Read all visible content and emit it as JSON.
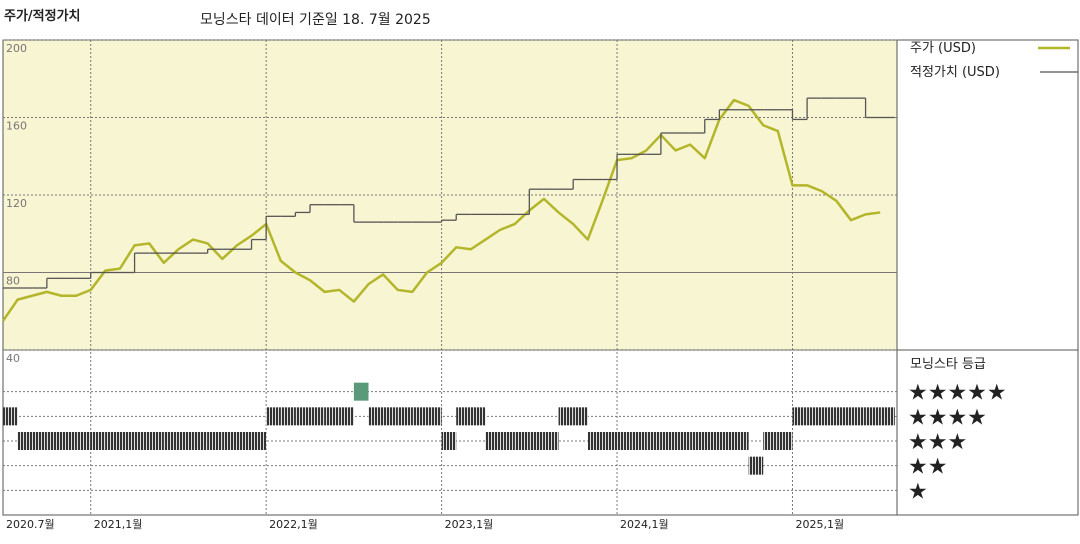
{
  "header": {
    "title": "주가/적정가치",
    "subtitle": "모닝스타 데이터 기준일 18. 7월 2025"
  },
  "chart_data": [
    {
      "type": "line",
      "x": [
        "2020-07",
        "2020-08",
        "2020-09",
        "2020-10",
        "2020-11",
        "2020-12",
        "2021-01",
        "2021-02",
        "2021-03",
        "2021-04",
        "2021-05",
        "2021-06",
        "2021-07",
        "2021-08",
        "2021-09",
        "2021-10",
        "2021-11",
        "2021-12",
        "2022-01",
        "2022-02",
        "2022-03",
        "2022-04",
        "2022-05",
        "2022-06",
        "2022-07",
        "2022-08",
        "2022-09",
        "2022-10",
        "2022-11",
        "2022-12",
        "2023-01",
        "2023-02",
        "2023-03",
        "2023-04",
        "2023-05",
        "2023-06",
        "2023-07",
        "2023-08",
        "2023-09",
        "2023-10",
        "2023-11",
        "2023-12",
        "2024-01",
        "2024-02",
        "2024-03",
        "2024-04",
        "2024-05",
        "2024-06",
        "2024-07",
        "2024-08",
        "2024-09",
        "2024-10",
        "2024-11",
        "2024-12",
        "2025-01",
        "2025-02",
        "2025-03",
        "2025-04",
        "2025-05",
        "2025-06",
        "2025-07"
      ],
      "series": [
        {
          "name": "주가 (USD)",
          "color": "#b3b52a",
          "style": "line",
          "values": [
            55,
            66,
            68,
            70,
            68,
            68,
            71,
            81,
            82,
            94,
            95,
            85,
            92,
            97,
            95,
            87,
            94,
            99,
            105,
            86,
            80,
            76,
            70,
            71,
            65,
            74,
            79,
            71,
            70,
            80,
            85,
            93,
            92,
            97,
            102,
            105,
            112,
            118,
            111,
            105,
            97,
            117,
            138,
            139,
            143,
            151,
            143,
            146,
            139,
            159,
            169,
            166,
            156,
            153,
            125,
            125,
            122,
            117,
            107,
            110,
            111
          ]
        },
        {
          "name": "적정가치 (USD)",
          "color": "#555555",
          "style": "step",
          "values": [
            72,
            72,
            72,
            77,
            77,
            77,
            80,
            80,
            80,
            90,
            90,
            90,
            90,
            90,
            92,
            92,
            92,
            97,
            109,
            109,
            111,
            115,
            115,
            115,
            106,
            106,
            106,
            106,
            106,
            106,
            107,
            110,
            110,
            110,
            110,
            110,
            123,
            123,
            123,
            128,
            128,
            128,
            141,
            141,
            141,
            152,
            152,
            152,
            159,
            164,
            164,
            164,
            164,
            164,
            159,
            170,
            170,
            170,
            170,
            160,
            160
          ]
        }
      ],
      "ylim": [
        40,
        200
      ],
      "yticks": [
        40,
        80,
        120,
        160,
        200
      ],
      "xticks": [
        {
          "value": "2020-07",
          "label": "2020.7월"
        },
        {
          "value": "2021-01",
          "label": "2021,1월"
        },
        {
          "value": "2022-01",
          "label": "2022,1월"
        },
        {
          "value": "2023-01",
          "label": "2023,1월"
        },
        {
          "value": "2024-01",
          "label": "2024,1월"
        },
        {
          "value": "2025-01",
          "label": "2025,1월"
        }
      ],
      "grid": true,
      "background": "#f8f5d2"
    },
    {
      "type": "strip",
      "title": "모닝스타 등급",
      "color": "#333333",
      "top_color": "#5a9a7a",
      "x": [
        "2020-07",
        "2020-08",
        "2020-09",
        "2020-10",
        "2020-11",
        "2020-12",
        "2021-01",
        "2021-02",
        "2021-03",
        "2021-04",
        "2021-05",
        "2021-06",
        "2021-07",
        "2021-08",
        "2021-09",
        "2021-10",
        "2021-11",
        "2021-12",
        "2022-01",
        "2022-02",
        "2022-03",
        "2022-04",
        "2022-05",
        "2022-06",
        "2022-07",
        "2022-08",
        "2022-09",
        "2022-10",
        "2022-11",
        "2022-12",
        "2023-01",
        "2023-02",
        "2023-03",
        "2023-04",
        "2023-05",
        "2023-06",
        "2023-07",
        "2023-08",
        "2023-09",
        "2023-10",
        "2023-11",
        "2023-12",
        "2024-01",
        "2024-02",
        "2024-03",
        "2024-04",
        "2024-05",
        "2024-06",
        "2024-07",
        "2024-08",
        "2024-09",
        "2024-10",
        "2024-11",
        "2024-12",
        "2025-01",
        "2025-02",
        "2025-03",
        "2025-04",
        "2025-05",
        "2025-06",
        "2025-07"
      ],
      "values": [
        4,
        3,
        3,
        3,
        3,
        3,
        3,
        3,
        3,
        3,
        3,
        3,
        3,
        3,
        3,
        3,
        3,
        3,
        4,
        4,
        4,
        4,
        4,
        4,
        5,
        4,
        4,
        4,
        4,
        4,
        3,
        4,
        4,
        3,
        3,
        3,
        3,
        3,
        4,
        4,
        3,
        3,
        3,
        3,
        3,
        3,
        3,
        3,
        3,
        3,
        3,
        2,
        3,
        3,
        4,
        4,
        4,
        4,
        4,
        4,
        4
      ],
      "ylim": [
        0,
        6
      ],
      "yticks": [
        {
          "value": 5,
          "label": "★★★★★"
        },
        {
          "value": 4,
          "label": "★★★★"
        },
        {
          "value": 3,
          "label": "★★★"
        },
        {
          "value": 2,
          "label": "★★"
        },
        {
          "value": 1,
          "label": "★"
        }
      ]
    }
  ]
}
